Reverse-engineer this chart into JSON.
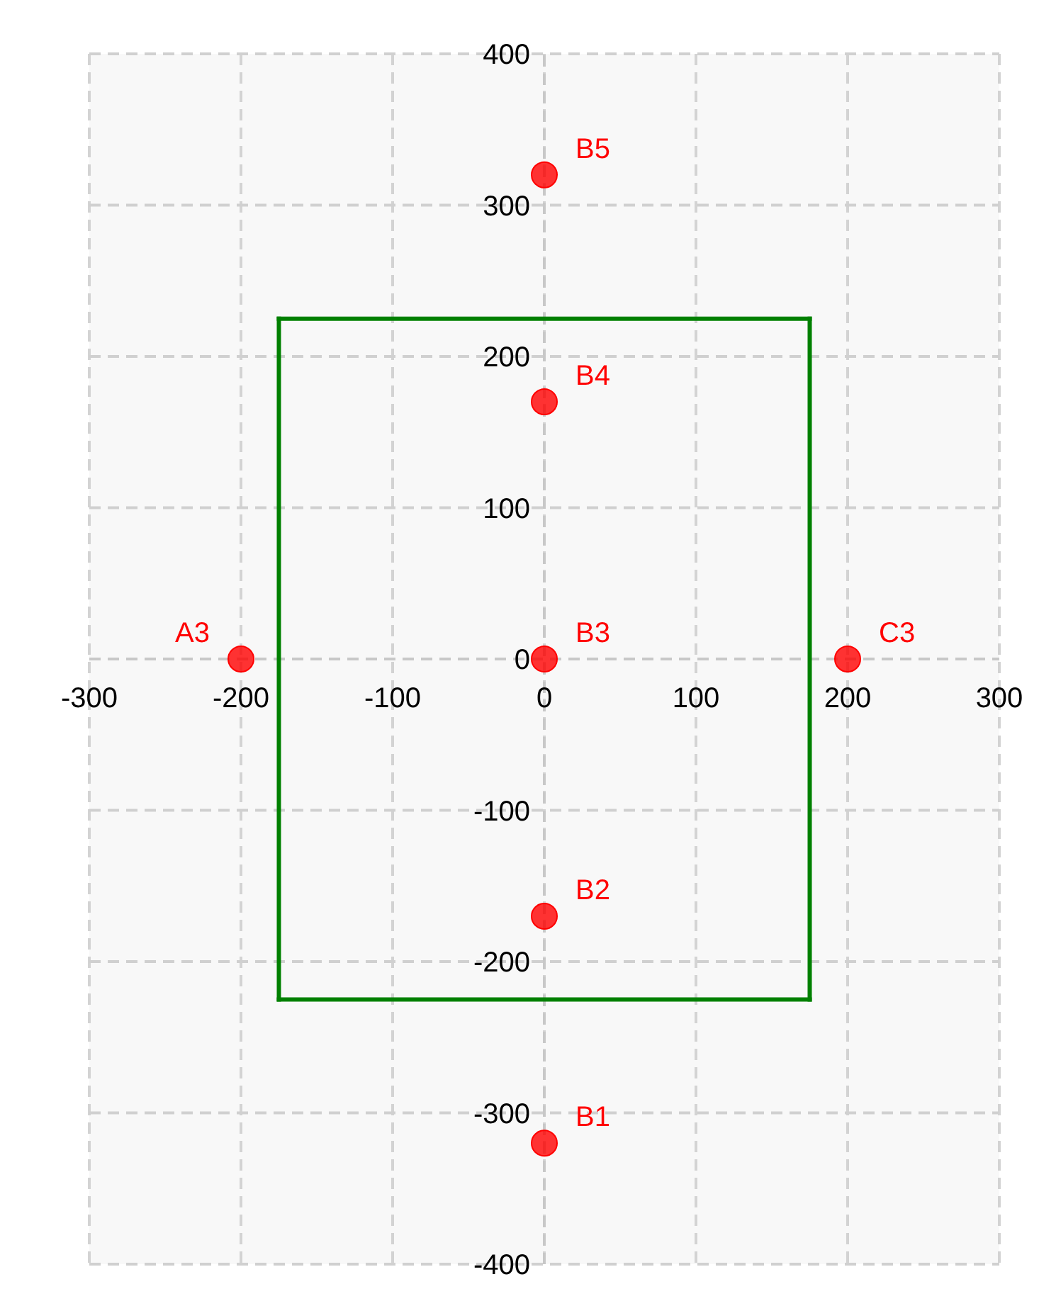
{
  "chart_data": {
    "type": "scatter",
    "xlim": [
      -300,
      300
    ],
    "xticks": [
      -300,
      -200,
      -100,
      0,
      100,
      200,
      300
    ],
    "ylim": [
      -400,
      400
    ],
    "yticks": [
      -400,
      -300,
      -200,
      -100,
      0,
      100,
      200,
      300,
      400
    ],
    "grid": true,
    "marker": "circle",
    "series": [
      {
        "color": "#ff0000",
        "x": [
          -200,
          0,
          0,
          0,
          0,
          0,
          200
        ],
        "values": [
          0,
          -320,
          -170,
          0,
          170,
          320,
          0
        ],
        "value_labels": [
          "A3",
          "B1",
          "B2",
          "B3",
          "B4",
          "B5",
          "C3"
        ]
      },
      {
        "type": "line",
        "color": "#008000",
        "line_style": "solid",
        "marker": "none",
        "x": [
          -175,
          175
        ],
        "values": [
          225,
          225
        ]
      },
      {
        "type": "line",
        "color": "#008000",
        "line_style": "solid",
        "marker": "none",
        "x": [
          175,
          175
        ],
        "values": [
          225,
          -225
        ]
      },
      {
        "type": "line",
        "color": "#008000",
        "line_style": "solid",
        "marker": "none",
        "x": [
          -175,
          175
        ],
        "values": [
          -225,
          -225
        ]
      },
      {
        "type": "line",
        "color": "#008000",
        "line_style": "solid",
        "marker": "none",
        "x": [
          -175,
          -175
        ],
        "values": [
          -225,
          225
        ]
      }
    ]
  }
}
